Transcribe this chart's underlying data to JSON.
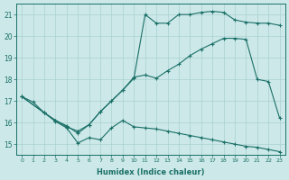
{
  "xlabel": "Humidex (Indice chaleur)",
  "xlim": [
    -0.5,
    23.5
  ],
  "ylim": [
    14.5,
    21.5
  ],
  "yticks": [
    15,
    16,
    17,
    18,
    19,
    20,
    21
  ],
  "xticks": [
    0,
    1,
    2,
    3,
    4,
    5,
    6,
    7,
    8,
    9,
    10,
    11,
    12,
    13,
    14,
    15,
    16,
    17,
    18,
    19,
    20,
    21,
    22,
    23
  ],
  "bg_color": "#cce8e8",
  "grid_color": "#aad0d0",
  "line_color": "#1a7068",
  "line1_x": [
    0,
    1,
    2,
    3,
    4,
    5,
    6,
    7,
    8,
    9,
    10,
    11,
    12,
    13,
    14,
    15,
    16,
    17,
    18,
    19,
    20,
    21,
    22,
    23
  ],
  "line1_y": [
    17.2,
    16.95,
    16.45,
    16.05,
    15.75,
    15.05,
    15.3,
    15.2,
    15.75,
    16.1,
    15.8,
    15.75,
    15.7,
    15.6,
    15.5,
    15.4,
    15.3,
    15.2,
    15.1,
    15.0,
    14.9,
    14.85,
    14.75,
    14.65
  ],
  "line2_x": [
    0,
    2,
    3,
    4,
    5,
    6,
    7,
    8,
    9,
    10,
    11,
    12,
    13,
    14,
    15,
    16,
    17,
    18,
    19,
    20,
    21,
    22,
    23
  ],
  "line2_y": [
    17.2,
    16.45,
    16.1,
    15.8,
    15.6,
    15.9,
    16.5,
    17.0,
    17.5,
    18.1,
    18.2,
    18.05,
    18.4,
    18.7,
    19.1,
    19.4,
    19.65,
    19.9,
    19.9,
    19.85,
    18.0,
    17.9,
    16.2
  ],
  "line3_x": [
    0,
    2,
    3,
    4,
    5,
    6,
    7,
    8,
    9,
    10,
    11,
    12,
    13,
    14,
    15,
    16,
    17,
    18,
    19,
    20,
    21,
    22,
    23
  ],
  "line3_y": [
    17.2,
    16.45,
    16.1,
    15.85,
    15.5,
    15.9,
    16.5,
    17.0,
    17.5,
    18.05,
    21.0,
    20.6,
    20.6,
    21.0,
    21.0,
    21.1,
    21.15,
    21.1,
    20.75,
    20.65,
    20.6,
    20.6,
    20.5
  ]
}
